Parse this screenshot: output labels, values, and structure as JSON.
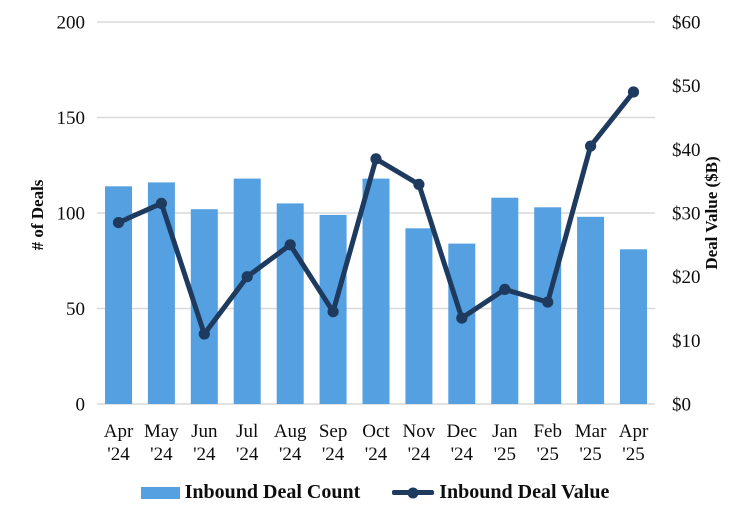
{
  "chart_data": {
    "type": "combo-bar-line",
    "categories": [
      [
        "Apr",
        "'24"
      ],
      [
        "May",
        "'24"
      ],
      [
        "Jun",
        "'24"
      ],
      [
        "Jul",
        "'24"
      ],
      [
        "Aug",
        "'24"
      ],
      [
        "Sep",
        "'24"
      ],
      [
        "Oct",
        "'24"
      ],
      [
        "Nov",
        "'24"
      ],
      [
        "Dec",
        "'24"
      ],
      [
        "Jan",
        "'25"
      ],
      [
        "Feb",
        "'25"
      ],
      [
        "Mar",
        "'25"
      ],
      [
        "Apr",
        "'25"
      ]
    ],
    "series": [
      {
        "name": "Inbound Deal Count",
        "type": "bar",
        "axis": "left",
        "color": "#55a0e0",
        "values": [
          114,
          116,
          102,
          118,
          105,
          99,
          118,
          92,
          84,
          108,
          103,
          98,
          81
        ]
      },
      {
        "name": "Inbound Deal Value",
        "type": "line",
        "axis": "right",
        "color": "#1f3a5f",
        "values": [
          28.5,
          31.5,
          11,
          20,
          25,
          14.5,
          38.5,
          34.5,
          13.5,
          18,
          16,
          40.5,
          49
        ]
      }
    ],
    "left_axis": {
      "title": "# of Deals",
      "min": 0,
      "max": 200,
      "tick_values": [
        0,
        50,
        100,
        150,
        200
      ],
      "tick_labels": [
        "0",
        "50",
        "100",
        "150",
        "200"
      ]
    },
    "right_axis": {
      "title": "Deal Value ($B)",
      "min": 0,
      "max": 60,
      "tick_values": [
        0,
        10,
        20,
        30,
        40,
        50,
        60
      ],
      "tick_labels": [
        "$0",
        "$10",
        "$20",
        "$30",
        "$40",
        "$50",
        "$60"
      ]
    },
    "grid": "horizontal lines at left-axis ticks only",
    "legend_position": "bottom",
    "colors": {
      "gridline": "#d9d9d9",
      "text": "#0d0d0d",
      "background": "#ffffff"
    }
  }
}
